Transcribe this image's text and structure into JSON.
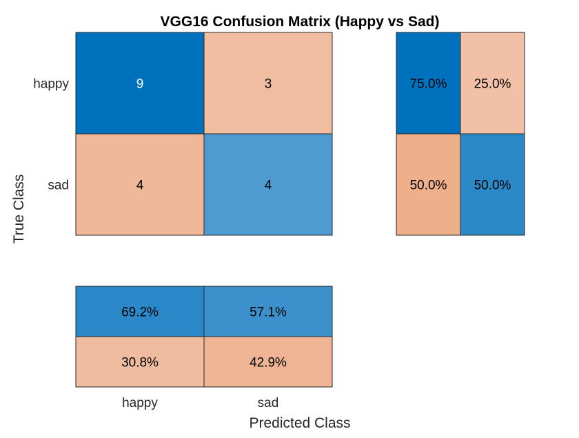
{
  "chart_data": {
    "type": "heatmap",
    "title": "VGG16 Confusion Matrix (Happy vs Sad)",
    "xlabel": "Predicted Class",
    "ylabel": "True Class",
    "classes": [
      "happy",
      "sad"
    ],
    "matrix": [
      [
        9,
        3
      ],
      [
        4,
        4
      ]
    ],
    "row_summary": {
      "values": [
        [
          "75.0%",
          "25.0%"
        ],
        [
          "50.0%",
          "50.0%"
        ]
      ],
      "fractions": [
        [
          0.75,
          0.25
        ],
        [
          0.5,
          0.5
        ]
      ]
    },
    "column_summary": {
      "values": [
        [
          "69.2%",
          "57.1%"
        ],
        [
          "30.8%",
          "42.9%"
        ]
      ],
      "fractions": [
        [
          0.692,
          0.571
        ],
        [
          0.308,
          0.429
        ]
      ]
    },
    "grid": false,
    "colors": {
      "correct_dark": "#0072BD",
      "correct_light": "#8BBBE1",
      "incorrect_dark": "#EDA67E",
      "incorrect_light": "#F3D2C1"
    }
  }
}
